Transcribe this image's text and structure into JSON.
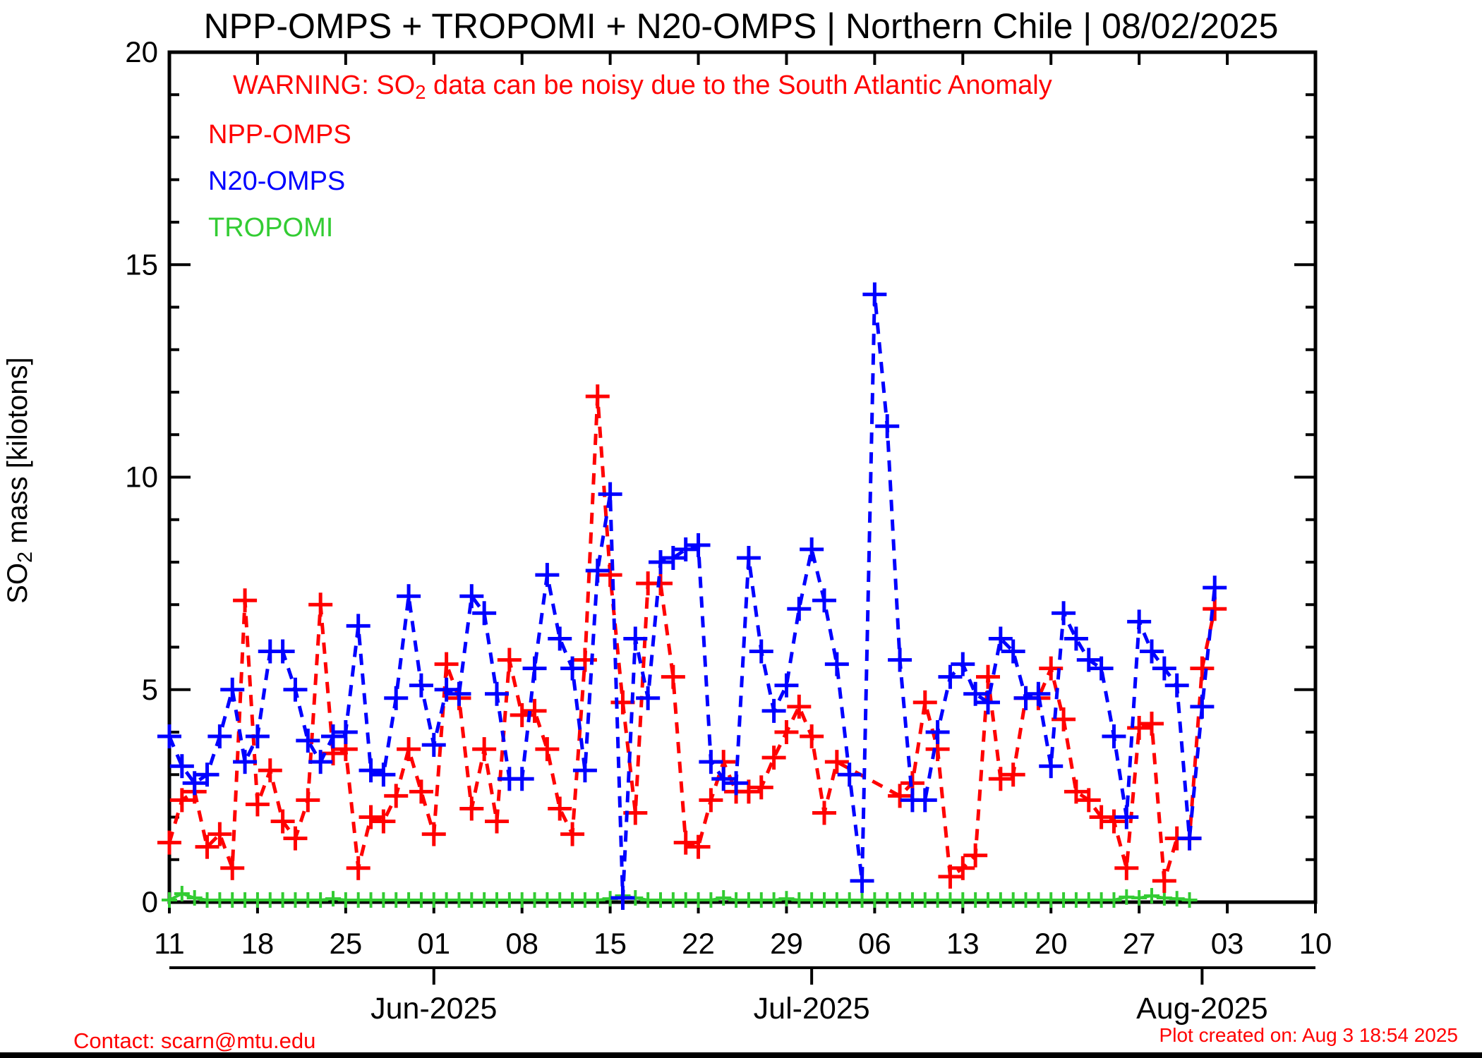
{
  "title": "NPP-OMPS + TROPOMI + N20-OMPS | Northern Chile | 08/02/2025",
  "warning": {
    "pre": "WARNING: SO",
    "sub": "2",
    "post": " data can be noisy due to the South Atlantic Anomaly"
  },
  "legend": {
    "position": "top-left-inside",
    "items": [
      {
        "label": "NPP-OMPS",
        "color": "#ff0000"
      },
      {
        "label": "N20-OMPS",
        "color": "#0000ff"
      },
      {
        "label": "TROPOMI",
        "color": "#33cc33"
      }
    ]
  },
  "ylabel_parts": {
    "pre": "SO",
    "sub": "2",
    "post": " mass [kilotons]"
  },
  "footer": {
    "contact": "Contact: scarn@mtu.edu",
    "created": "Plot created on: Aug  3 18:54 2025"
  },
  "colors": {
    "frame": "#000000",
    "npp": "#ff0000",
    "n20": "#0000ff",
    "tropomi": "#33cc33"
  },
  "chart_data": {
    "type": "line",
    "title": "NPP-OMPS + TROPOMI + N20-OMPS | Northern Chile | 08/02/2025",
    "xlabel": "",
    "ylabel": "SO2 mass [kilotons]",
    "ylim": [
      0,
      20
    ],
    "y_major_ticks": [
      0,
      5,
      10,
      15,
      20
    ],
    "y_minor_step": 1,
    "grid": false,
    "x_start_date": "2025-05-11",
    "x_end_date": "2025-08-10",
    "x_tick_days": [
      0,
      7,
      14,
      21,
      28,
      35,
      42,
      49,
      56,
      63,
      70,
      77,
      84,
      91
    ],
    "x_tick_labels": [
      "11",
      "18",
      "25",
      "01",
      "08",
      "15",
      "22",
      "29",
      "06",
      "13",
      "20",
      "27",
      "03",
      "10"
    ],
    "month_ticks": [
      {
        "day": 21,
        "label": "Jun-2025"
      },
      {
        "day": 51,
        "label": "Jul-2025"
      },
      {
        "day": 82,
        "label": "Aug-2025"
      }
    ],
    "series": [
      {
        "name": "NPP-OMPS",
        "color": "#ff0000",
        "marker": "plus",
        "linestyle": "dashed",
        "start_day": 0,
        "values": [
          1.4,
          2.4,
          2.6,
          1.3,
          1.6,
          0.8,
          7.1,
          2.3,
          3.1,
          1.9,
          1.5,
          2.4,
          7.0,
          3.5,
          3.6,
          0.8,
          2.0,
          1.9,
          2.5,
          3.6,
          2.6,
          1.6,
          5.6,
          4.8,
          2.2,
          3.6,
          1.9,
          5.7,
          4.4,
          4.5,
          3.6,
          2.2,
          1.6,
          5.7,
          11.9,
          7.7,
          4.7,
          2.1,
          7.5,
          7.5,
          5.3,
          1.4,
          1.3,
          2.4,
          3.3,
          2.6,
          2.6,
          2.7,
          3.4,
          4.0,
          4.6,
          3.9,
          2.1,
          3.3,
          null,
          null,
          null,
          null,
          2.5,
          2.8,
          4.7,
          3.6,
          0.6,
          0.8,
          1.1,
          5.3,
          2.9,
          3.0,
          4.8,
          4.8,
          5.5,
          4.3,
          2.6,
          2.4,
          2.0,
          1.9,
          0.8,
          4.1,
          4.2,
          0.5,
          1.5,
          1.5,
          5.5,
          6.9
        ]
      },
      {
        "name": "N20-OMPS",
        "color": "#0000ff",
        "marker": "plus",
        "linestyle": "dashed",
        "start_day": 0,
        "values": [
          3.9,
          3.2,
          2.8,
          3.0,
          3.9,
          5.0,
          3.3,
          3.9,
          5.9,
          5.9,
          5.0,
          3.8,
          3.3,
          3.9,
          4.0,
          6.5,
          3.1,
          3.0,
          4.8,
          7.2,
          5.1,
          3.7,
          5.0,
          4.9,
          7.2,
          6.8,
          4.9,
          2.9,
          2.9,
          5.5,
          7.7,
          6.2,
          5.5,
          3.1,
          7.8,
          9.6,
          0.1,
          6.2,
          4.8,
          8.0,
          8.1,
          8.3,
          8.4,
          3.3,
          2.9,
          2.8,
          8.1,
          5.9,
          4.5,
          5.1,
          6.9,
          8.3,
          7.1,
          5.6,
          3.0,
          0.5,
          14.3,
          11.2,
          5.7,
          2.4,
          2.4,
          4.0,
          5.3,
          5.6,
          4.9,
          4.7,
          6.2,
          5.9,
          4.8,
          4.9,
          3.2,
          6.8,
          6.2,
          5.7,
          5.5,
          3.9,
          2.0,
          6.6,
          5.9,
          5.5,
          5.1,
          1.5,
          4.6,
          7.4
        ]
      },
      {
        "name": "TROPOMI",
        "color": "#33cc33",
        "marker": "plus",
        "linestyle": "solid",
        "start_day": 0,
        "values": [
          0.05,
          0.2,
          0.1,
          0.05,
          0.05,
          0.05,
          0.05,
          0.05,
          0.05,
          0.05,
          0.05,
          0.05,
          0.05,
          0.08,
          0.05,
          0.05,
          0.05,
          0.05,
          0.05,
          0.05,
          0.05,
          0.05,
          0.05,
          0.05,
          0.05,
          0.05,
          0.05,
          0.05,
          0.05,
          0.05,
          0.05,
          0.05,
          0.05,
          0.05,
          0.05,
          0.08,
          0.15,
          0.1,
          0.05,
          0.05,
          0.05,
          0.05,
          0.05,
          0.05,
          0.1,
          0.05,
          0.05,
          0.05,
          0.05,
          0.08,
          0.05,
          0.05,
          0.05,
          0.05,
          0.05,
          0.05,
          0.05,
          0.05,
          0.05,
          0.05,
          0.05,
          0.05,
          0.05,
          0.05,
          0.05,
          0.05,
          0.05,
          0.05,
          0.05,
          0.05,
          0.05,
          0.05,
          0.05,
          0.05,
          0.05,
          0.05,
          0.12,
          0.1,
          0.15,
          0.1,
          0.08,
          0.05
        ]
      }
    ]
  }
}
